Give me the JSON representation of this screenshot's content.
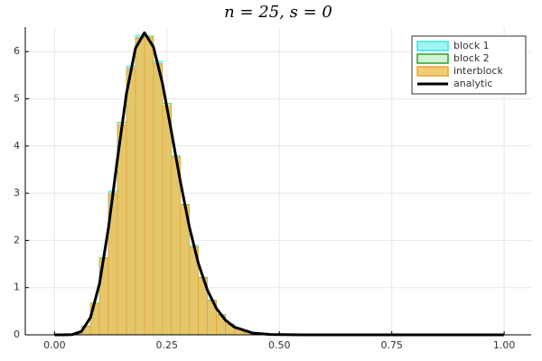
{
  "chart_data": {
    "type": "histogram",
    "title": "n = 25, s = 0",
    "bins": [
      0.0,
      0.02,
      0.04,
      0.06,
      0.08,
      0.1,
      0.12,
      0.14,
      0.16,
      0.18,
      0.2,
      0.22,
      0.24,
      0.26,
      0.28,
      0.3,
      0.32,
      0.34,
      0.36,
      0.38,
      0.4,
      0.42,
      0.44,
      0.46,
      0.48,
      0.5
    ],
    "series": [
      {
        "name": "block 1",
        "color": "#7ff0ee",
        "edge": "#2ee8e0",
        "values": [
          0,
          0.001,
          0.03,
          0.19,
          0.65,
          1.6,
          3.05,
          4.4,
          5.7,
          6.35,
          6.25,
          5.8,
          4.8,
          3.8,
          2.7,
          1.9,
          1.18,
          0.74,
          0.41,
          0.23,
          0.12,
          0.05,
          0.03,
          0.01,
          0.005
        ]
      },
      {
        "name": "block 2",
        "color": "#c4ecc4",
        "edge": "#2ca02c",
        "values": [
          0,
          0.002,
          0.02,
          0.17,
          0.67,
          1.63,
          2.95,
          4.5,
          5.6,
          6.28,
          6.33,
          5.7,
          4.9,
          3.75,
          2.76,
          1.85,
          1.22,
          0.72,
          0.43,
          0.22,
          0.12,
          0.06,
          0.02,
          0.012,
          0.004
        ]
      },
      {
        "name": "interblock",
        "color": "#f2b84a",
        "edge": "#e8a530",
        "values": [
          0,
          0.001,
          0.025,
          0.18,
          0.66,
          1.62,
          3.0,
          4.45,
          5.65,
          6.3,
          6.3,
          5.75,
          4.85,
          3.78,
          2.74,
          1.87,
          1.2,
          0.73,
          0.42,
          0.23,
          0.12,
          0.055,
          0.025,
          0.011,
          0.005
        ]
      }
    ],
    "line": {
      "name": "analytic",
      "color": "#000000",
      "x": [
        0.0,
        0.02,
        0.04,
        0.06,
        0.08,
        0.1,
        0.12,
        0.14,
        0.16,
        0.18,
        0.2,
        0.22,
        0.24,
        0.26,
        0.28,
        0.3,
        0.32,
        0.34,
        0.36,
        0.38,
        0.4,
        0.44,
        0.48,
        0.55,
        0.6,
        0.7,
        0.8,
        0.9,
        1.0
      ],
      "values": [
        0,
        4e-05,
        0.0056,
        0.073,
        0.367,
        1.083,
        2.268,
        3.73,
        5.11,
        6.07,
        6.4,
        6.1,
        5.33,
        4.3,
        3.24,
        2.28,
        1.51,
        0.946,
        0.558,
        0.312,
        0.164,
        0.039,
        0.0073,
        0.0003,
        0,
        0,
        0,
        0,
        0
      ]
    },
    "xlim": [
      -0.065,
      1.06
    ],
    "ylim": [
      0,
      6.52
    ],
    "xticks": [
      {
        "value": 0,
        "label": "0.00"
      },
      {
        "value": 0.25,
        "label": "0.25"
      },
      {
        "value": 0.5,
        "label": "0.50"
      },
      {
        "value": 0.75,
        "label": "0.75"
      },
      {
        "value": 1,
        "label": "1.00"
      }
    ],
    "yticks": [
      0,
      1,
      2,
      3,
      4,
      5,
      6
    ],
    "grid": true,
    "legend": "top-right"
  }
}
